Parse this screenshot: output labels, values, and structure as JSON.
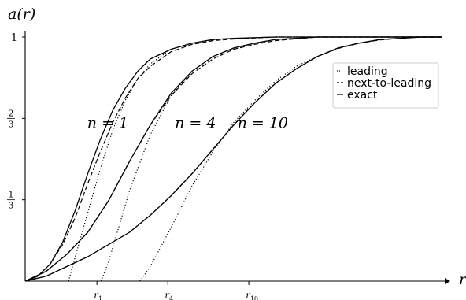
{
  "chart_data": {
    "type": "line",
    "ylabel": "a(r)",
    "xlabel": "r",
    "xlim": [
      0,
      10
    ],
    "ylim": [
      0,
      1
    ],
    "grid": false,
    "legend_position": "top-right",
    "y_ticks": [
      {
        "value": 0.3333,
        "num": "1",
        "den": "3"
      },
      {
        "value": 0.6667,
        "num": "2",
        "den": "3"
      },
      {
        "value": 1.0,
        "label": "1"
      }
    ],
    "x_ticks": [
      {
        "value": 1.72,
        "label": "r",
        "sub": "1"
      },
      {
        "value": 3.42,
        "label": "r",
        "sub": "4"
      },
      {
        "value": 5.36,
        "label": "r",
        "sub": "10"
      }
    ],
    "legend": [
      {
        "label": "leading",
        "style": "dotted"
      },
      {
        "label": "next-to-leading",
        "style": "dashed"
      },
      {
        "label": "exact",
        "style": "solid"
      }
    ],
    "curve_labels": [
      {
        "text": "n = 1",
        "x": 1.6,
        "y": 0.66
      },
      {
        "text": "n = 4",
        "x": 3.7,
        "y": 0.66
      },
      {
        "text": "n = 10",
        "x": 5.2,
        "y": 0.66
      }
    ],
    "series": [
      {
        "n": "1",
        "style": "solid",
        "x": [
          0,
          0.3,
          0.6,
          0.9,
          1.2,
          1.5,
          1.8,
          2.1,
          2.4,
          2.7,
          3.0,
          3.5,
          4.0,
          4.5,
          5.0,
          6.0,
          7.0,
          8.0,
          9.0,
          10.0
        ],
        "y": [
          0,
          0.02,
          0.07,
          0.16,
          0.29,
          0.44,
          0.58,
          0.7,
          0.79,
          0.86,
          0.91,
          0.95,
          0.975,
          0.99,
          0.995,
          1,
          1,
          1,
          1,
          1
        ]
      },
      {
        "n": "1",
        "style": "dashed",
        "x": [
          0,
          0.3,
          0.6,
          0.9,
          1.2,
          1.5,
          1.8,
          2.1,
          2.4,
          2.7,
          3.0,
          3.5,
          4.0,
          4.5,
          5.0,
          6.0,
          7.0,
          8.0,
          9.0,
          10.0
        ],
        "y": [
          0,
          0.02,
          0.07,
          0.15,
          0.26,
          0.4,
          0.53,
          0.65,
          0.75,
          0.83,
          0.88,
          0.94,
          0.97,
          0.985,
          0.992,
          1,
          1,
          1,
          1,
          1
        ]
      },
      {
        "n": "1",
        "style": "dotted",
        "x": [
          1.04,
          1.2,
          1.5,
          1.8,
          2.1,
          2.4,
          2.7,
          3.0,
          3.5,
          4.0,
          4.5,
          5.0,
          6.0,
          7.0,
          8.0,
          9.0,
          10.0
        ],
        "y": [
          0,
          0.1,
          0.28,
          0.46,
          0.62,
          0.74,
          0.83,
          0.89,
          0.95,
          0.975,
          0.988,
          0.995,
          1,
          1,
          1,
          1,
          1
        ]
      },
      {
        "n": "4",
        "style": "solid",
        "x": [
          0,
          0.5,
          1.0,
          1.5,
          2.0,
          2.5,
          3.0,
          3.5,
          4.0,
          4.5,
          5.0,
          5.5,
          6.0,
          6.5,
          7.0,
          8.0,
          9.0,
          10.0
        ],
        "y": [
          0,
          0.04,
          0.11,
          0.2,
          0.33,
          0.49,
          0.64,
          0.77,
          0.86,
          0.92,
          0.955,
          0.975,
          0.99,
          0.995,
          1,
          1,
          1,
          1
        ]
      },
      {
        "n": "4",
        "style": "dashed",
        "x": [
          0,
          0.5,
          1.0,
          1.5,
          2.0,
          2.5,
          3.0,
          3.5,
          4.0,
          4.5,
          5.0,
          5.5,
          6.0,
          6.5,
          7.0,
          8.0,
          9.0,
          10.0
        ],
        "y": [
          0,
          0.04,
          0.11,
          0.2,
          0.33,
          0.49,
          0.64,
          0.76,
          0.85,
          0.91,
          0.95,
          0.97,
          0.985,
          0.993,
          1,
          1,
          1,
          1
        ]
      },
      {
        "n": "4",
        "style": "dotted",
        "x": [
          1.82,
          2.0,
          2.5,
          3.0,
          3.5,
          4.0,
          4.5,
          5.0,
          5.5,
          6.0,
          6.5,
          7.0,
          8.0,
          9.0,
          10.0
        ],
        "y": [
          0,
          0.08,
          0.37,
          0.6,
          0.76,
          0.86,
          0.92,
          0.955,
          0.975,
          0.99,
          0.995,
          1,
          1,
          1,
          1
        ]
      },
      {
        "n": "10",
        "style": "solid",
        "x": [
          0,
          0.5,
          1.0,
          1.5,
          2.0,
          2.5,
          3.0,
          3.5,
          4.0,
          4.5,
          5.0,
          5.5,
          6.0,
          6.5,
          7.0,
          7.5,
          8.0,
          8.5,
          9.0,
          9.5,
          10.0
        ],
        "y": [
          0,
          0.02,
          0.06,
          0.1,
          0.15,
          0.2,
          0.27,
          0.35,
          0.44,
          0.54,
          0.64,
          0.73,
          0.81,
          0.87,
          0.92,
          0.955,
          0.975,
          0.99,
          0.995,
          1,
          1
        ]
      },
      {
        "n": "10",
        "style": "dashed",
        "x": [
          0,
          0.5,
          1.0,
          1.5,
          2.0,
          2.5,
          3.0,
          3.5,
          4.0,
          4.5,
          5.0,
          5.5,
          6.0,
          6.5,
          7.0,
          7.5,
          8.0,
          8.5,
          9.0,
          9.5,
          10.0
        ],
        "y": [
          0,
          0.02,
          0.06,
          0.1,
          0.15,
          0.2,
          0.27,
          0.35,
          0.44,
          0.54,
          0.64,
          0.73,
          0.81,
          0.87,
          0.92,
          0.953,
          0.975,
          0.988,
          0.995,
          1,
          1
        ]
      },
      {
        "n": "10",
        "style": "dotted",
        "x": [
          2.75,
          3.0,
          3.5,
          4.0,
          4.5,
          5.0,
          5.5,
          6.0,
          6.5,
          7.0,
          7.5,
          8.0,
          8.5,
          9.0,
          9.5,
          10.0
        ],
        "y": [
          0,
          0.06,
          0.22,
          0.39,
          0.53,
          0.65,
          0.74,
          0.82,
          0.88,
          0.92,
          0.955,
          0.975,
          0.99,
          0.995,
          1,
          1
        ]
      }
    ]
  }
}
